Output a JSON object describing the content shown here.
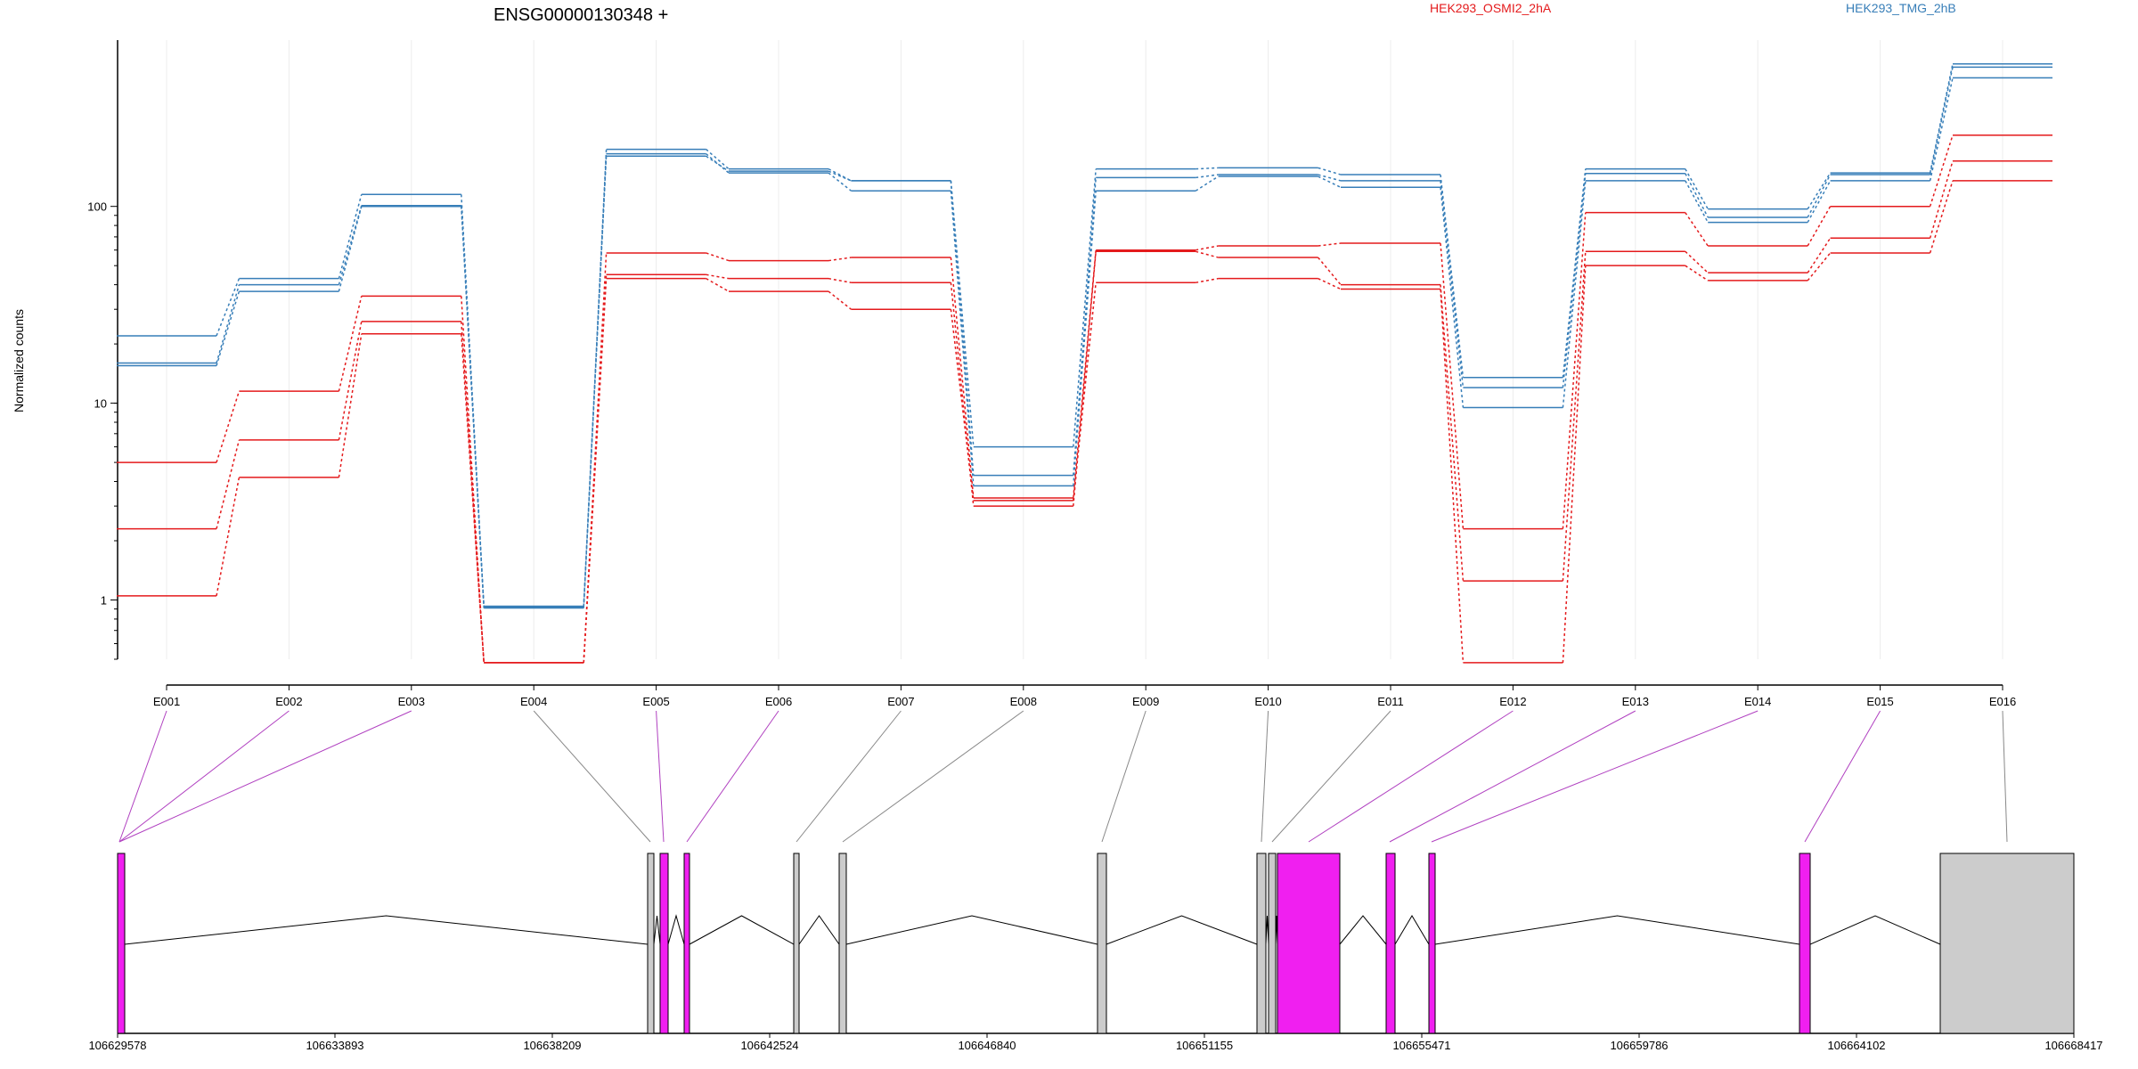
{
  "chart_data": {
    "type": "line",
    "title": "ENSG00000130348 +",
    "ylabel": "Normalized counts",
    "yscale": "log",
    "ylim": [
      0.5,
      700
    ],
    "yticks": [
      1,
      10,
      100
    ],
    "ytick_labels": [
      "1",
      "10",
      "100"
    ],
    "x": [
      "E001",
      "E002",
      "E003",
      "E004",
      "E005",
      "E006",
      "E007",
      "E008",
      "E009",
      "E010",
      "E011",
      "E012",
      "E013",
      "E014",
      "E015",
      "E016"
    ],
    "groups": [
      {
        "name": "HEK293_OSMI2_2hA",
        "color": "#e41a1c"
      },
      {
        "name": "HEK293_TMG_2hB",
        "color": "#377eb8"
      }
    ],
    "series": [
      {
        "group": 0,
        "values": [
          5.0,
          11.5,
          35,
          0.48,
          58,
          53,
          55,
          3.3,
          60,
          63,
          65,
          2.3,
          93,
          63,
          100,
          230
        ]
      },
      {
        "group": 0,
        "values": [
          2.3,
          6.5,
          26,
          0.48,
          45,
          43,
          41,
          3.0,
          59,
          55,
          40,
          1.25,
          59,
          46,
          69,
          170
        ]
      },
      {
        "group": 0,
        "values": [
          1.05,
          4.2,
          22.5,
          0.48,
          43,
          37,
          30,
          3.2,
          41,
          43,
          38,
          0.48,
          50,
          42,
          58,
          135
        ]
      },
      {
        "group": 1,
        "values": [
          22,
          43,
          115,
          0.93,
          195,
          155,
          135,
          6.0,
          155,
          157,
          145,
          13.5,
          155,
          97,
          148,
          530
        ]
      },
      {
        "group": 1,
        "values": [
          16,
          40,
          101,
          0.92,
          180,
          151,
          135,
          4.3,
          140,
          145,
          135,
          12,
          147,
          88,
          145,
          510
        ]
      },
      {
        "group": 1,
        "values": [
          15.5,
          37,
          100,
          0.91,
          185,
          148,
          120,
          3.8,
          120,
          142,
          125,
          9.5,
          135,
          83,
          135,
          450
        ]
      }
    ],
    "genomic_ticks": [
      "106629578",
      "106633893",
      "106638209",
      "106642524",
      "106646840",
      "106651155",
      "106655471",
      "106659786",
      "106664102",
      "106668417"
    ],
    "genomic_range": [
      106629578,
      106668417
    ],
    "exon_highlight": [
      true,
      true,
      true,
      false,
      true,
      true,
      false,
      false,
      false,
      false,
      false,
      true,
      true,
      true,
      true,
      false
    ],
    "highlight_color": "#f01ff0",
    "gray_color": "#cccccc"
  }
}
